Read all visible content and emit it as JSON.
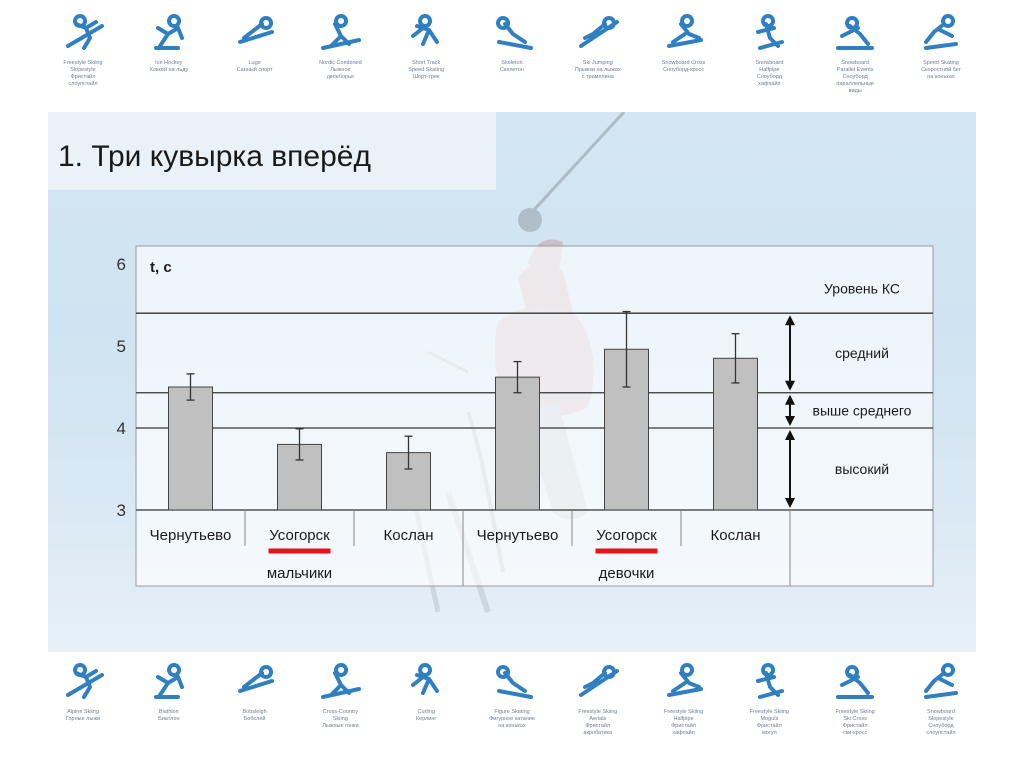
{
  "slide_title": "1. Три кувырка вперёд",
  "pictograms_top": [
    {
      "icon": "freestyle-skiing-slopestyle-icon",
      "caption": "Freestyle Skiing\nSlopestyle\nФристайл\nслоупстайл"
    },
    {
      "icon": "ice-hockey-icon",
      "caption": "Ice Hockey\nХоккей на льду"
    },
    {
      "icon": "luge-icon",
      "caption": "Luge\nСанный спорт"
    },
    {
      "icon": "nordic-combined-icon",
      "caption": "Nordic Combined\nЛыжное\nдвоеборье"
    },
    {
      "icon": "short-track-icon",
      "caption": "Short Track\nSpeed Skating\nШорт-трек"
    },
    {
      "icon": "skeleton-icon",
      "caption": "Skeleton\nСкелетон"
    },
    {
      "icon": "ski-jumping-icon",
      "caption": "Ski Jumping\nПрыжки на лыжах\nс трамплина"
    },
    {
      "icon": "snowboard-cross-icon",
      "caption": "Snowboard Cross\nСноуборд-кросс"
    },
    {
      "icon": "snowboard-halfpipe-icon",
      "caption": "Snowboard\nHalfpipe\nСноуборд\nхафпайп"
    },
    {
      "icon": "snowboard-parallel-icon",
      "caption": "Snowboard\nParallel Events\nСноуборд\nпараллельные\nвиды"
    },
    {
      "icon": "speed-skating-icon",
      "caption": "Speed Skating\nСкоростной бег\nна коньках"
    }
  ],
  "pictograms_bottom": [
    {
      "icon": "alpine-skiing-icon",
      "caption": "Alpine Skiing\nГорные лыжи"
    },
    {
      "icon": "biathlon-icon",
      "caption": "Biathlon\nБиатлон"
    },
    {
      "icon": "bobsleigh-icon",
      "caption": "Bobsleigh\nБобслей"
    },
    {
      "icon": "cross-country-skiing-icon",
      "caption": "Cross-Country\nSkiing\nЛыжные гонки"
    },
    {
      "icon": "curling-icon",
      "caption": "Curling\nКерлинг"
    },
    {
      "icon": "figure-skating-icon",
      "caption": "Figure Skating\nФигурное катание\nна коньках"
    },
    {
      "icon": "freestyle-aerials-icon",
      "caption": "Freestyle Skiing\nAerials\nФристайл\nакробатика"
    },
    {
      "icon": "freestyle-halfpipe-icon",
      "caption": "Freestyle Skiing\nHalfpipe\nФристайл\nхафпайп"
    },
    {
      "icon": "freestyle-moguls-icon",
      "caption": "Freestyle Skiing\nMoguls\nФристайл\nмогул"
    },
    {
      "icon": "freestyle-ski-cross-icon",
      "caption": "Freestyle Skiing\nSki Cross\nФристайл\nски-кросс"
    },
    {
      "icon": "snowboard-slopestyle-icon",
      "caption": "Snowboard\nSlopestyle\nСноуборд\nслоупстайл"
    }
  ],
  "chart_data": {
    "type": "bar",
    "ylabel": "t, с",
    "ylim": [
      3,
      6
    ],
    "yticks": [
      3,
      4,
      5,
      6
    ],
    "categories": [
      "Чернутьево",
      "Усогорск",
      "Кослан",
      "Чернутьево",
      "Усогорск",
      "Кослан"
    ],
    "groups": [
      {
        "label": "мальчики",
        "categories": [
          0,
          1,
          2
        ]
      },
      {
        "label": "девочки",
        "categories": [
          3,
          4,
          5
        ]
      }
    ],
    "highlighted_categories": [
      1,
      4
    ],
    "values": [
      4.5,
      3.8,
      3.7,
      4.62,
      4.96,
      4.85
    ],
    "errors": [
      0.16,
      0.19,
      0.2,
      0.19,
      0.46,
      0.3
    ],
    "bar_color": "#c0c0c0",
    "highlight_color": "#e5141b",
    "levels": [
      {
        "label": "Уровень КС",
        "from": 5.4,
        "to": 6
      },
      {
        "label": "средний",
        "from": 4.43,
        "to": 5.4
      },
      {
        "label": "выше среднего",
        "from": 4.0,
        "to": 4.43
      },
      {
        "label": "высокий",
        "from": 3.0,
        "to": 4.0
      }
    ],
    "reference_lines": [
      5.4,
      4.43,
      4.0,
      3.0
    ]
  }
}
